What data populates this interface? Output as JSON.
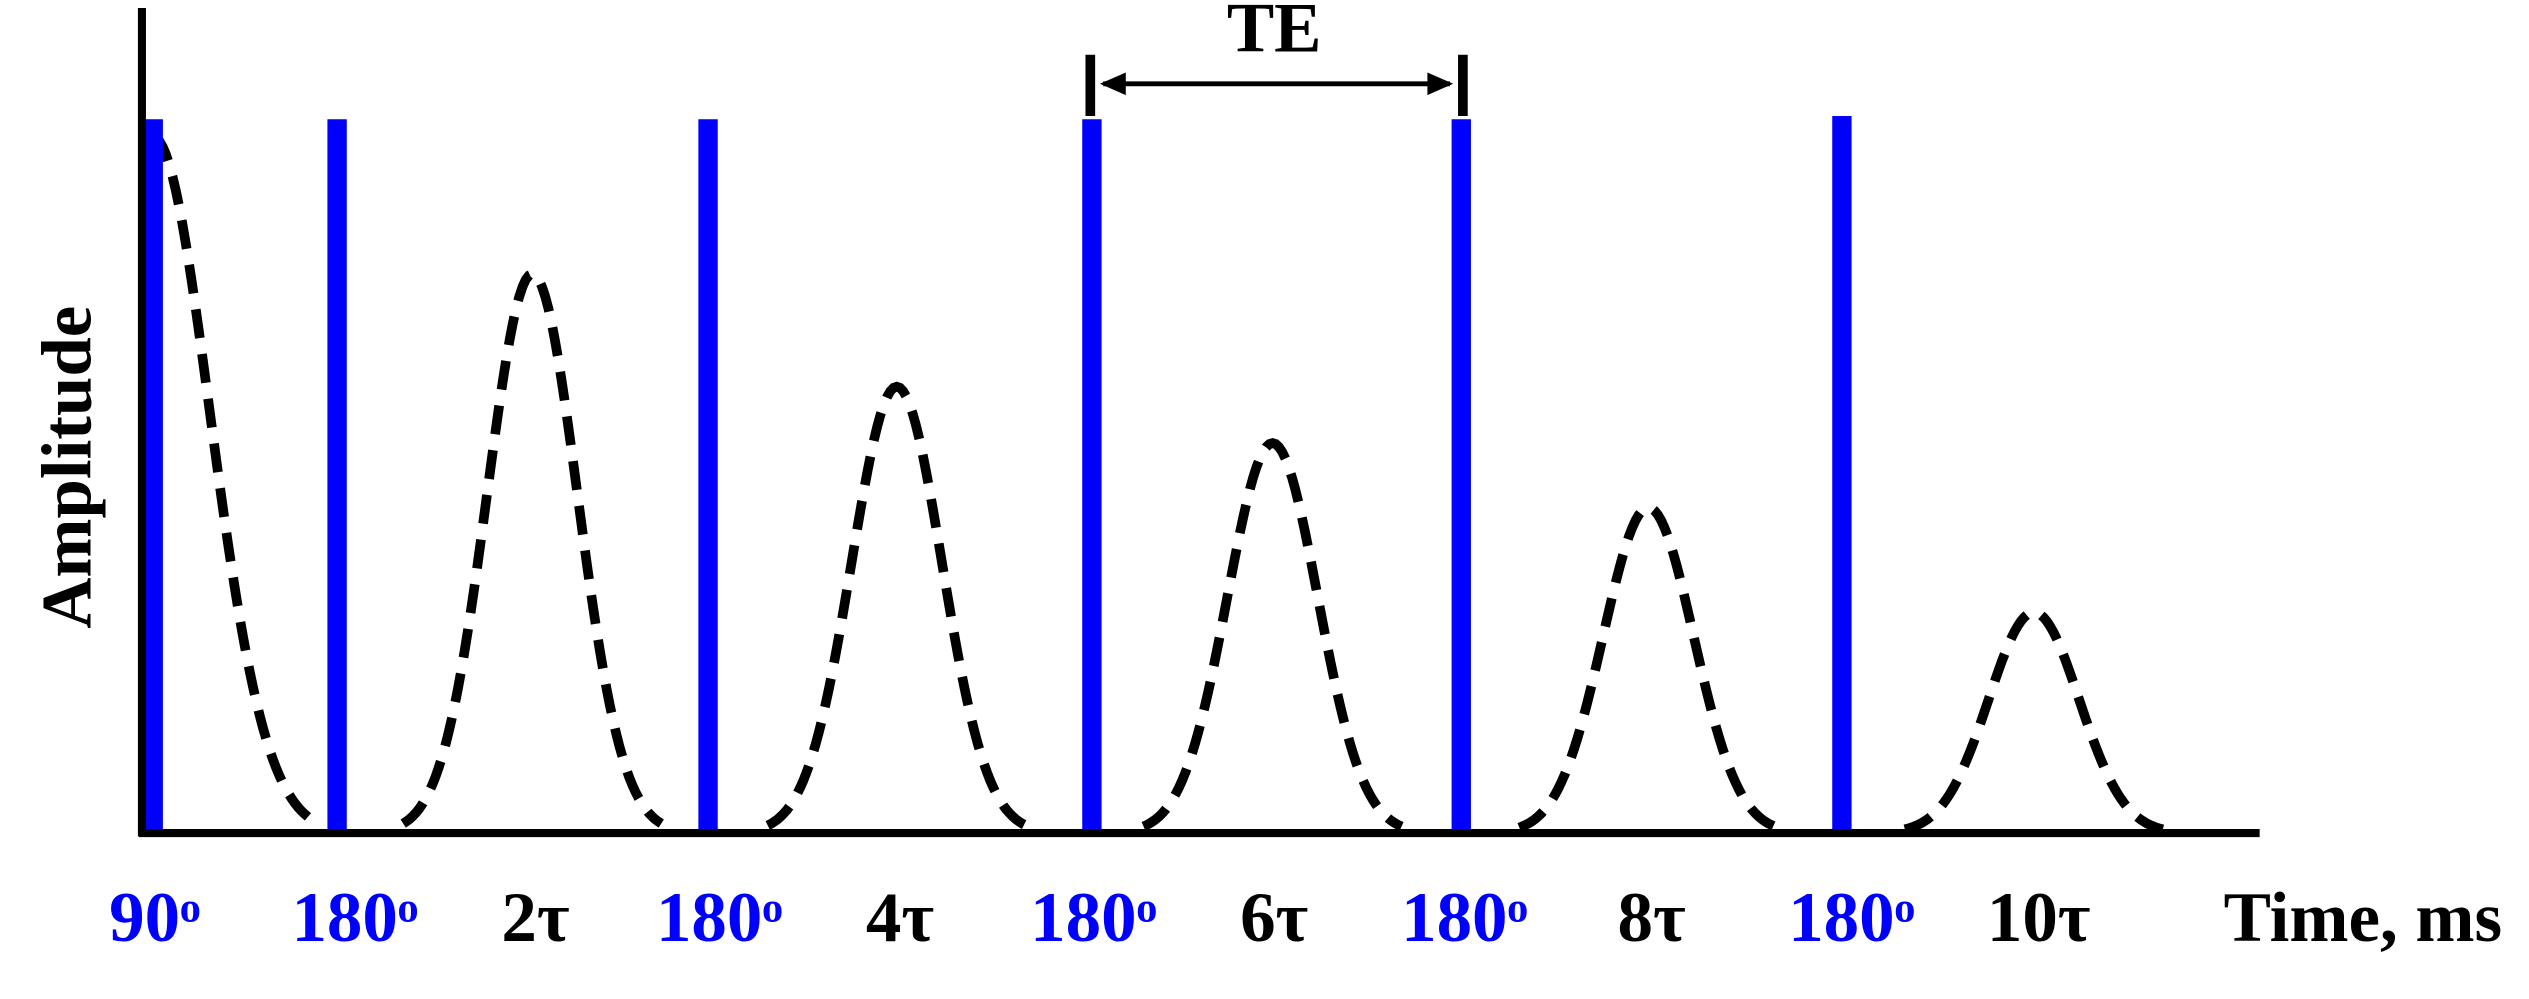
{
  "y_label": "Amplitude",
  "x_label": "Time, ms",
  "interval_label": "TE",
  "pulse_labels": [
    "90ᵒ",
    "180ᵒ",
    "180ᵒ",
    "180ᵒ",
    "180ᵒ",
    "180ᵒ"
  ],
  "echo_labels": [
    "2τ",
    "4τ",
    "6τ",
    "8τ",
    "10τ"
  ]
}
